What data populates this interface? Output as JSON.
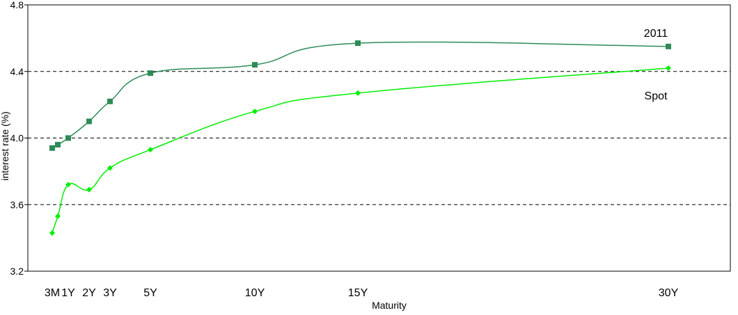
{
  "chart_data": {
    "type": "line",
    "title": "",
    "xlabel": "Maturity",
    "ylabel": "interest rate (%)",
    "ylim": [
      3.2,
      4.8
    ],
    "yticks": [
      3.2,
      3.6,
      4.0,
      4.4,
      4.8
    ],
    "ytick_labels": [
      "3.2",
      "3.6",
      "4.0",
      "4.4",
      "4.8"
    ],
    "xlim": [
      0,
      35
    ],
    "xticks": [
      {
        "label": "3M",
        "x": 0.25
      },
      {
        "label": "1Y",
        "x": 1
      },
      {
        "label": "2Y",
        "x": 2
      },
      {
        "label": "3Y",
        "x": 3
      },
      {
        "label": "5Y",
        "x": 5
      },
      {
        "label": "10Y",
        "x": 10
      },
      {
        "label": "15Y",
        "x": 15
      },
      {
        "label": "30Y",
        "x": 30
      }
    ],
    "grid": {
      "horizontal_dashed_at": [
        3.6,
        4.0,
        4.4
      ]
    },
    "stray_mark": ".",
    "series": [
      {
        "name": "2011",
        "marker": "square",
        "color": "#2e8b57",
        "points": [
          {
            "x": 0.25,
            "y": 3.94
          },
          {
            "x": 0.5,
            "y": 3.96
          },
          {
            "x": 1,
            "y": 4.0
          },
          {
            "x": 2,
            "y": 4.1
          },
          {
            "x": 3,
            "y": 4.22
          },
          {
            "x": 5,
            "y": 4.39
          },
          {
            "x": 10,
            "y": 4.44
          },
          {
            "x": 15,
            "y": 4.57
          },
          {
            "x": 30,
            "y": 4.55
          }
        ]
      },
      {
        "name": "Spot",
        "marker": "diamond",
        "color": "#00ee00",
        "points": [
          {
            "x": 0.25,
            "y": 3.43
          },
          {
            "x": 0.5,
            "y": 3.53
          },
          {
            "x": 1,
            "y": 3.72
          },
          {
            "x": 2,
            "y": 3.69
          },
          {
            "x": 3,
            "y": 3.82
          },
          {
            "x": 5,
            "y": 3.93
          },
          {
            "x": 10,
            "y": 4.16
          },
          {
            "x": 15,
            "y": 4.27
          },
          {
            "x": 30,
            "y": 4.42
          }
        ]
      }
    ]
  }
}
